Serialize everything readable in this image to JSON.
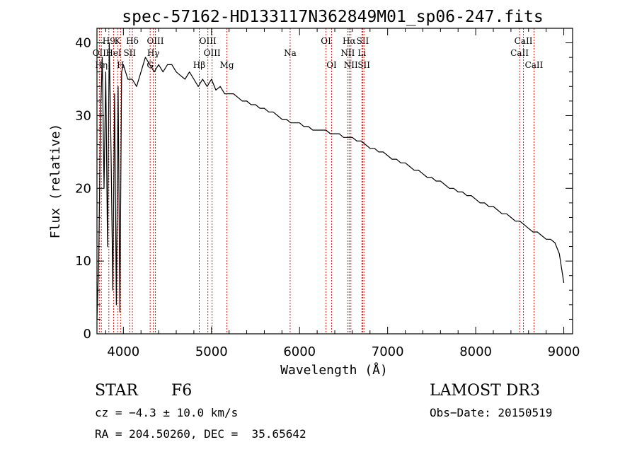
{
  "chart_data": {
    "type": "line",
    "title": "spec-57162-HD133117N362849M01_sp06-247.fits",
    "xlabel": "Wavelength (Å)",
    "ylabel": "Flux (relative)",
    "xlim": [
      3700,
      9100
    ],
    "ylim": [
      0,
      42
    ],
    "xticks": [
      4000,
      5000,
      6000,
      7000,
      8000,
      9000
    ],
    "yticks": [
      0,
      10,
      20,
      30,
      40
    ],
    "grid": false,
    "series": [
      {
        "name": "flux",
        "x": [
          3700,
          3720,
          3740,
          3760,
          3780,
          3800,
          3820,
          3840,
          3860,
          3880,
          3900,
          3920,
          3940,
          3960,
          3980,
          4000,
          4050,
          4100,
          4150,
          4200,
          4250,
          4300,
          4350,
          4400,
          4450,
          4500,
          4550,
          4600,
          4650,
          4700,
          4750,
          4800,
          4850,
          4900,
          4950,
          5000,
          5050,
          5100,
          5150,
          5200,
          5250,
          5300,
          5350,
          5400,
          5450,
          5500,
          5550,
          5600,
          5650,
          5700,
          5750,
          5800,
          5850,
          5900,
          5950,
          6000,
          6050,
          6100,
          6150,
          6200,
          6250,
          6300,
          6350,
          6400,
          6450,
          6500,
          6550,
          6600,
          6650,
          6700,
          6750,
          6800,
          6850,
          6900,
          6950,
          7000,
          7050,
          7100,
          7150,
          7200,
          7250,
          7300,
          7350,
          7400,
          7450,
          7500,
          7550,
          7600,
          7650,
          7700,
          7750,
          7800,
          7850,
          7900,
          7950,
          8000,
          8050,
          8100,
          8150,
          8200,
          8250,
          8300,
          8350,
          8400,
          8450,
          8500,
          8550,
          8600,
          8650,
          8700,
          8750,
          8800,
          8850,
          8900,
          8950,
          9000
        ],
        "y": [
          2,
          10,
          30,
          38,
          20,
          36,
          12,
          40,
          25,
          6,
          33,
          4,
          34,
          3,
          36,
          37,
          35,
          35,
          34,
          36,
          38,
          37,
          36,
          37,
          36,
          37,
          37,
          36,
          35.5,
          35,
          36,
          35,
          34,
          35,
          34,
          35,
          33.5,
          34,
          33,
          33,
          33,
          32.5,
          32,
          32,
          31.5,
          31.5,
          31,
          31,
          30.5,
          30.5,
          30,
          29.5,
          29.5,
          29,
          29,
          29,
          28.5,
          28.5,
          28,
          28,
          28,
          28,
          27.5,
          27.5,
          27.5,
          27,
          27,
          27,
          26.5,
          26.5,
          26,
          25.5,
          25.5,
          25,
          25,
          24.5,
          24,
          24,
          23.5,
          23.5,
          23,
          22.5,
          22.5,
          22,
          21.5,
          21.5,
          21,
          21,
          20.5,
          20,
          20,
          19.5,
          19.5,
          19,
          19,
          18.5,
          18,
          18,
          17.5,
          17.5,
          17,
          16.5,
          16.5,
          16,
          15.5,
          15.5,
          15,
          14.5,
          14,
          14,
          13.5,
          13,
          13,
          12.5,
          11,
          7
        ]
      }
    ],
    "annotations": [
      {
        "label": "H9",
        "x": 3835
      },
      {
        "label": "K",
        "x": 3934
      },
      {
        "label": "Hδ",
        "x": 4102
      },
      {
        "label": "OIII",
        "x": 4363
      },
      {
        "label": "OIII",
        "x": 4959
      },
      {
        "label": "OI",
        "x": 6300
      },
      {
        "label": "Hα",
        "x": 6563
      },
      {
        "label": "SII",
        "x": 6717
      },
      {
        "label": "CaII",
        "x": 8542
      },
      {
        "label": "OII",
        "x": 3727
      },
      {
        "label": "HeI",
        "x": 3889
      },
      {
        "label": "SII",
        "x": 4072
      },
      {
        "label": "Hγ",
        "x": 4340
      },
      {
        "label": "OIII",
        "x": 5007
      },
      {
        "label": "Na",
        "x": 5893
      },
      {
        "label": "NII",
        "x": 6548
      },
      {
        "label": "Li",
        "x": 6708
      },
      {
        "label": "CaII",
        "x": 8498
      },
      {
        "label": "Hη",
        "x": 3750
      },
      {
        "label": "H",
        "x": 3968
      },
      {
        "label": "G",
        "x": 4304
      },
      {
        "label": "Hβ",
        "x": 4861
      },
      {
        "label": "Mg",
        "x": 5175
      },
      {
        "label": "OI",
        "x": 6364
      },
      {
        "label": "NII",
        "x": 6583
      },
      {
        "label": "SII",
        "x": 6731
      },
      {
        "label": "CaII",
        "x": 8662
      }
    ]
  },
  "info": {
    "object_class": "STAR",
    "subclass": "F6",
    "survey": "LAMOST DR3",
    "cz": "cz = −4.3 ± 10.0 km/s",
    "obs_date": "Obs−Date: 20150519",
    "coords": "RA = 204.50260, DEC =  35.65642"
  }
}
